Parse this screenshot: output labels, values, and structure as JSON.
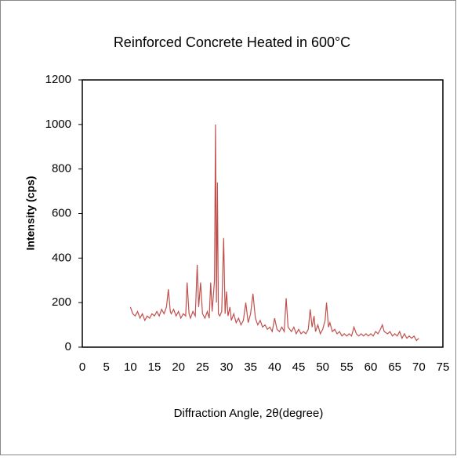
{
  "chart_data": {
    "type": "line",
    "title": "Reinforced Concrete Heated in 600°C",
    "xlabel": "Diffraction Angle, 2θ(degree)",
    "ylabel": "Intensity (cps)",
    "xlim": [
      0,
      75
    ],
    "xticks": [
      0,
      5,
      10,
      15,
      20,
      25,
      30,
      35,
      40,
      45,
      50,
      55,
      60,
      65,
      70,
      75
    ],
    "ylim": [
      0,
      1200
    ],
    "yticks": [
      0,
      200,
      400,
      600,
      800,
      1000,
      1200
    ],
    "series": [
      {
        "color": "#c0504d",
        "x": [
          10,
          10.5,
          11,
          11.5,
          12,
          12.5,
          13,
          13.5,
          14,
          14.5,
          15,
          15.5,
          16,
          16.5,
          17,
          17.5,
          17.9,
          18.3,
          18.5,
          19,
          19.5,
          20,
          20.5,
          21,
          21.5,
          21.8,
          22.2,
          22.5,
          23,
          23.5,
          23.9,
          24.2,
          24.6,
          25,
          25.5,
          26,
          26.4,
          26.7,
          27,
          27.5,
          27.7,
          27.9,
          28.1,
          28.3,
          28.6,
          29,
          29.4,
          29.7,
          30,
          30.3,
          30.7,
          31,
          31.5,
          32,
          32.5,
          33,
          33.5,
          34,
          34.5,
          35,
          35.5,
          36,
          36.5,
          37,
          37.5,
          38,
          38.5,
          39,
          39.5,
          40,
          40.5,
          41,
          41.5,
          42,
          42.4,
          42.8,
          43.5,
          44,
          44.5,
          45,
          45.5,
          46,
          46.5,
          47,
          47.4,
          47.8,
          48.2,
          48.5,
          49,
          49.5,
          50,
          50.5,
          50.8,
          51.2,
          51.5,
          52,
          52.5,
          53,
          53.5,
          54,
          54.5,
          55,
          55.5,
          56,
          56.5,
          57,
          57.5,
          58,
          58.5,
          59,
          59.5,
          60,
          60.5,
          61,
          61.5,
          62,
          62.4,
          62.8,
          63.5,
          64,
          64.5,
          65,
          65.5,
          66,
          66.5,
          67,
          67.5,
          68,
          68.5,
          69,
          69.5,
          70
        ],
        "values": [
          180,
          150,
          140,
          160,
          130,
          150,
          120,
          140,
          130,
          150,
          140,
          160,
          140,
          170,
          150,
          180,
          260,
          160,
          150,
          170,
          140,
          160,
          130,
          150,
          140,
          290,
          150,
          130,
          160,
          140,
          370,
          180,
          290,
          150,
          130,
          160,
          130,
          290,
          160,
          300,
          1000,
          200,
          740,
          150,
          140,
          160,
          490,
          150,
          250,
          140,
          180,
          120,
          150,
          110,
          130,
          100,
          120,
          200,
          110,
          150,
          240,
          130,
          100,
          120,
          90,
          100,
          80,
          90,
          70,
          130,
          80,
          70,
          90,
          70,
          220,
          90,
          70,
          90,
          60,
          80,
          60,
          70,
          60,
          80,
          170,
          90,
          140,
          70,
          100,
          60,
          80,
          120,
          200,
          90,
          110,
          70,
          80,
          60,
          70,
          50,
          60,
          50,
          60,
          50,
          90,
          60,
          50,
          60,
          50,
          60,
          50,
          60,
          50,
          70,
          60,
          80,
          100,
          70,
          60,
          70,
          50,
          60,
          50,
          70,
          40,
          60,
          40,
          50,
          40,
          50,
          30,
          40
        ]
      }
    ]
  }
}
